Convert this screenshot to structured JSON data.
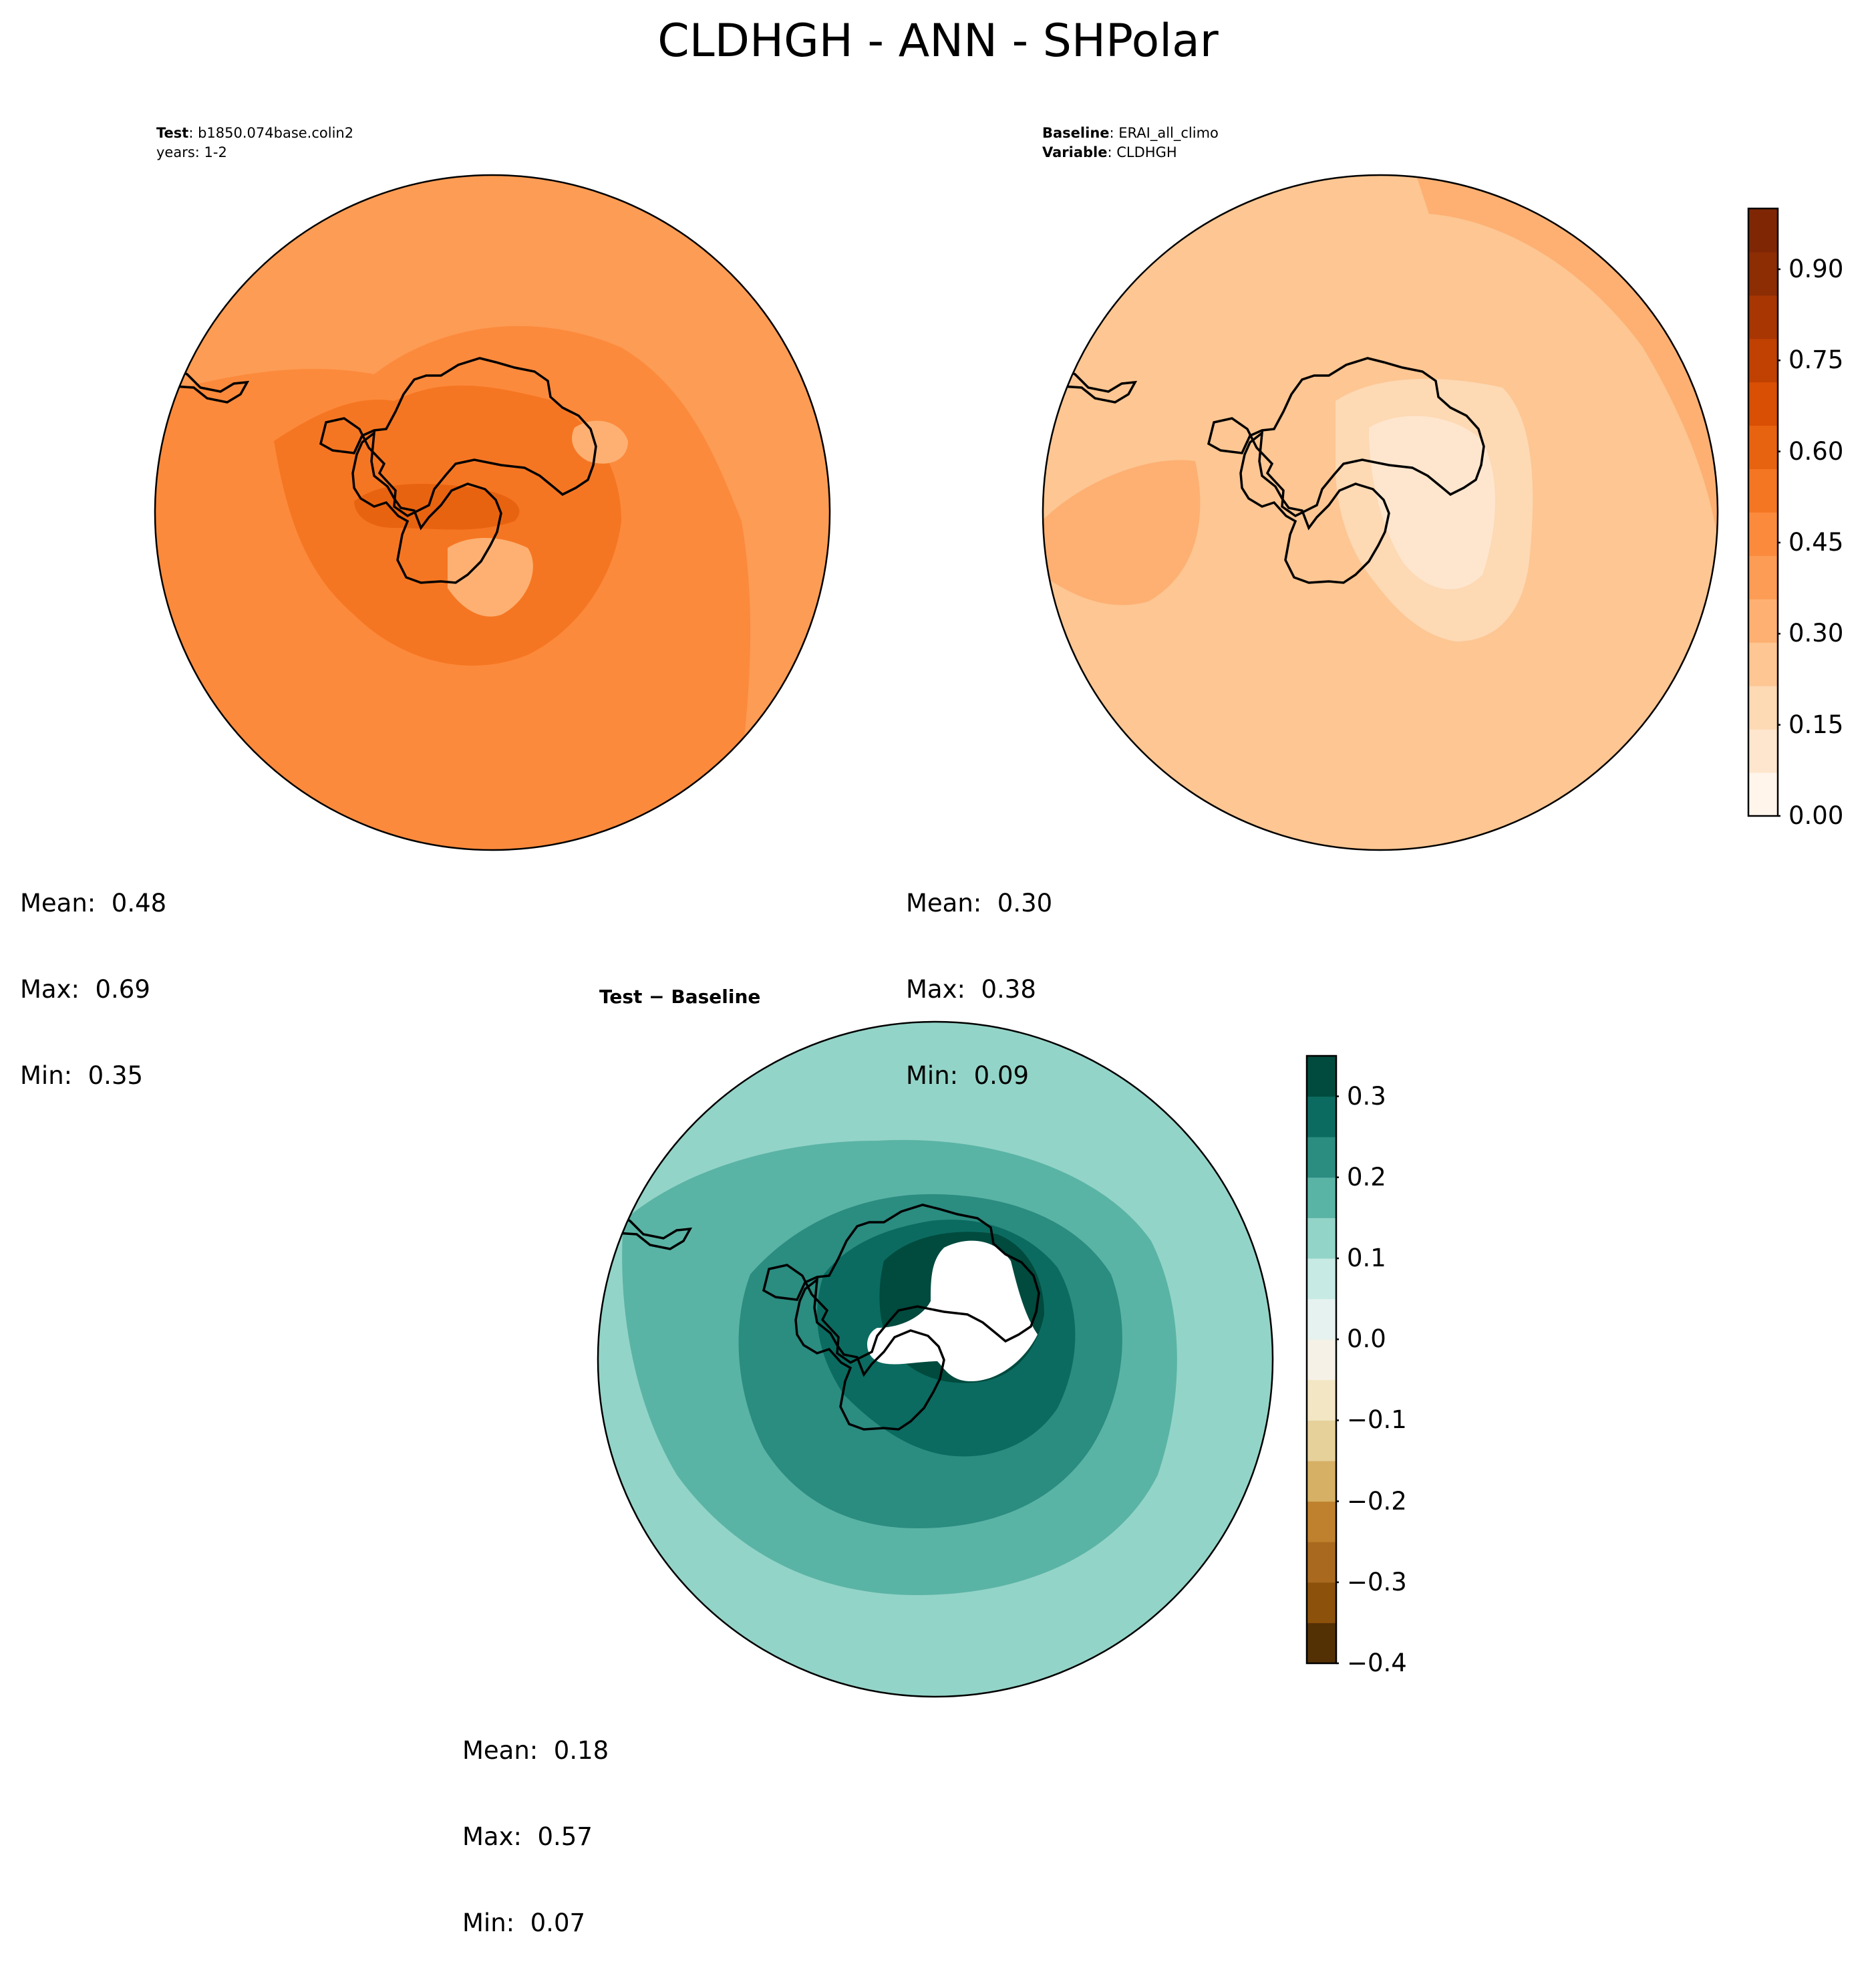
{
  "title": "CLDHGH - ANN - SHPolar",
  "test_panel": {
    "header_label": "Test",
    "header_value": "b1850.074base.colin2",
    "header_line2": "years: 1-2",
    "mean": "Mean:  0.48",
    "max": "Max:  0.69",
    "min": "Min:  0.35"
  },
  "baseline_panel": {
    "header_label": "Baseline",
    "header_value": "ERAI_all_climo",
    "variable_label": "Variable",
    "variable_value": "CLDHGH",
    "mean": "Mean:  0.30",
    "max": "Max:  0.38",
    "min": "Min:  0.09"
  },
  "diff_panel": {
    "header": "Test − Baseline",
    "mean": "Mean:  0.18",
    "max": "Max:  0.57",
    "min": "Min:  0.07"
  },
  "colorbar_main": {
    "ticks": [
      "0.00",
      "0.15",
      "0.30",
      "0.45",
      "0.60",
      "0.75",
      "0.90"
    ],
    "range": [
      0,
      1
    ],
    "colors": [
      "#fff5eb",
      "#fee6ce",
      "#fdd9b4",
      "#fdc692",
      "#fdb072",
      "#fd9c54",
      "#fc8a3c",
      "#f57622",
      "#e86310",
      "#d94f04",
      "#c04102",
      "#a73603",
      "#8c2d04",
      "#7f2704"
    ]
  },
  "colorbar_diff": {
    "ticks": [
      "0.3",
      "0.2",
      "0.1",
      "0.0",
      "−0.1",
      "−0.2",
      "−0.3",
      "−0.4"
    ],
    "range": [
      -0.4,
      0.35
    ],
    "colors": [
      "#543005",
      "#8c510a",
      "#a96a1f",
      "#bf812d",
      "#d6b064",
      "#e6d19a",
      "#f2e6c4",
      "#f5f1e6",
      "#e6f2f0",
      "#c7eae5",
      "#93d4c8",
      "#5ab4a5",
      "#2b8c80",
      "#0b6b60",
      "#004a3e"
    ]
  }
}
